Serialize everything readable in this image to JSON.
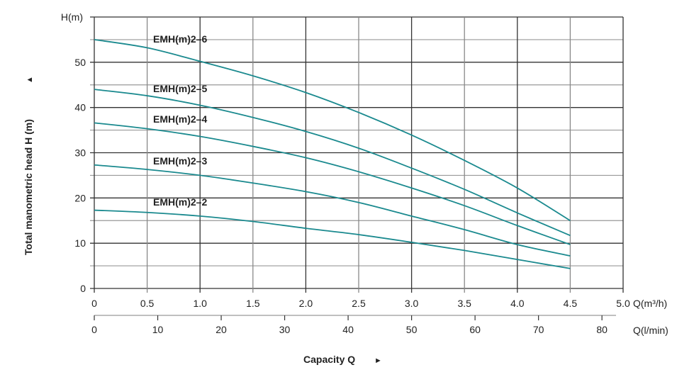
{
  "chart_data": {
    "type": "line",
    "title": "",
    "ylabel": "Total manometric head H (m)",
    "ylabel_arrow": "▲",
    "y_unit_label": "H(m)",
    "xlabel": "Capacity Q",
    "xlabel_arrow": "►",
    "x_unit_label": "Q(m³/h)",
    "x2_unit_label": "Q(l/min)",
    "xlim": [
      0,
      5.0
    ],
    "ylim": [
      0,
      60
    ],
    "x2lim_lmin": [
      0,
      83.33
    ],
    "grid": true,
    "x_ticks": [
      "0",
      "0.5",
      "1.0",
      "1.5",
      "2.0",
      "2.5",
      "3.0",
      "3.5",
      "4.0",
      "4.5",
      "5.0"
    ],
    "x2_ticks": [
      "0",
      "10",
      "20",
      "30",
      "40",
      "50",
      "60",
      "70",
      "80"
    ],
    "y_ticks": [
      "0",
      "10",
      "20",
      "30",
      "40",
      "50"
    ],
    "line_color": "#1b8a8f",
    "series": [
      {
        "name": "EMH(m)2–6",
        "x": [
          0,
          0.5,
          1.0,
          1.5,
          2.0,
          2.5,
          3.0,
          3.5,
          4.0,
          4.5
        ],
        "values": [
          55,
          53.2,
          50.2,
          47,
          43.3,
          38.9,
          33.9,
          28.3,
          22.2,
          15
        ]
      },
      {
        "name": "EMH(m)2–5",
        "x": [
          0,
          0.5,
          1.0,
          1.5,
          2.0,
          2.5,
          3.0,
          3.5,
          4.0,
          4.5
        ],
        "values": [
          44,
          42.6,
          40.5,
          37.8,
          34.7,
          31,
          26.6,
          21.9,
          16.7,
          11.7
        ]
      },
      {
        "name": "EMH(m)2–4",
        "x": [
          0,
          0.5,
          1.0,
          1.5,
          2.0,
          2.5,
          3.0,
          3.5,
          4.0,
          4.5
        ],
        "values": [
          36.6,
          35.3,
          33.6,
          31.4,
          28.9,
          25.8,
          22.2,
          18.3,
          13.9,
          9.7
        ]
      },
      {
        "name": "EMH(m)2–3",
        "x": [
          0,
          0.5,
          1.0,
          1.5,
          2.0,
          2.5,
          3.0,
          3.5,
          4.0,
          4.5
        ],
        "values": [
          27.3,
          26.3,
          25,
          23.3,
          21.4,
          19,
          16,
          13,
          9.7,
          7.2
        ]
      },
      {
        "name": "EMH(m)2–2",
        "x": [
          0,
          0.5,
          1.0,
          1.5,
          2.0,
          2.5,
          3.0,
          3.5,
          4.0,
          4.5
        ],
        "values": [
          17.3,
          16.8,
          16,
          14.8,
          13.3,
          11.9,
          10.2,
          8.4,
          6.4,
          4.4
        ]
      }
    ]
  }
}
